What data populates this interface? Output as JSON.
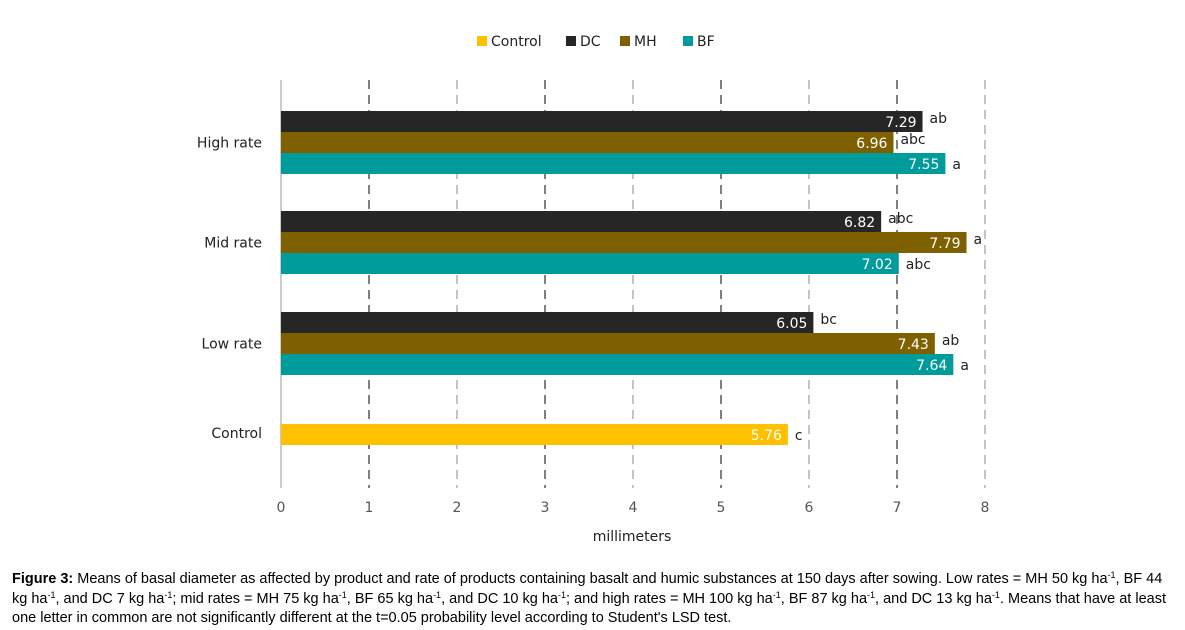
{
  "chart_data": {
    "type": "bar",
    "orientation": "horizontal",
    "categories": [
      "High rate",
      "Mid rate",
      "Low rate",
      "Control"
    ],
    "series": [
      {
        "name": "Control",
        "color": "#FFC000",
        "values": [
          null,
          null,
          null,
          5.76
        ],
        "letters": [
          null,
          null,
          null,
          "c"
        ]
      },
      {
        "name": "DC",
        "color": "#262626",
        "values": [
          7.29,
          6.82,
          6.05,
          null
        ],
        "letters": [
          "ab",
          "abc",
          "bc",
          null
        ]
      },
      {
        "name": "MH",
        "color": "#7F6000",
        "values": [
          6.96,
          7.79,
          7.43,
          null
        ],
        "letters": [
          "abc",
          "a",
          "ab",
          null
        ]
      },
      {
        "name": "BF",
        "color": "#009B9B",
        "values": [
          7.55,
          7.02,
          7.64,
          null
        ],
        "letters": [
          "a",
          "abc",
          "a",
          null
        ]
      }
    ],
    "bar_order": [
      "DC",
      "MH",
      "BF"
    ],
    "xlabel": "millimeters",
    "ylabel": "",
    "xlim": [
      0,
      8
    ],
    "xticks": [
      0,
      1,
      2,
      3,
      4,
      5,
      6,
      7,
      8
    ],
    "grid": "vertical dashed",
    "legend_position": "top-center"
  },
  "caption": {
    "label": "Figure 3:",
    "text": "Means of basal diameter as affected by product and rate of products containing basalt and humic substances at 150 days after sowing. Low rates = MH 50 kg ha-1, BF 44 kg ha-1, and DC 7 kg ha-1; mid rates = MH 75 kg ha-1, BF 65 kg ha-1, and DC 10 kg ha-1; and high rates = MH 100 kg ha-1, BF 87 kg ha-1, and DC 13 kg ha-1. Means that have at least one letter in common are not significantly different at the t=0.05 probability level according to Student's LSD test."
  }
}
